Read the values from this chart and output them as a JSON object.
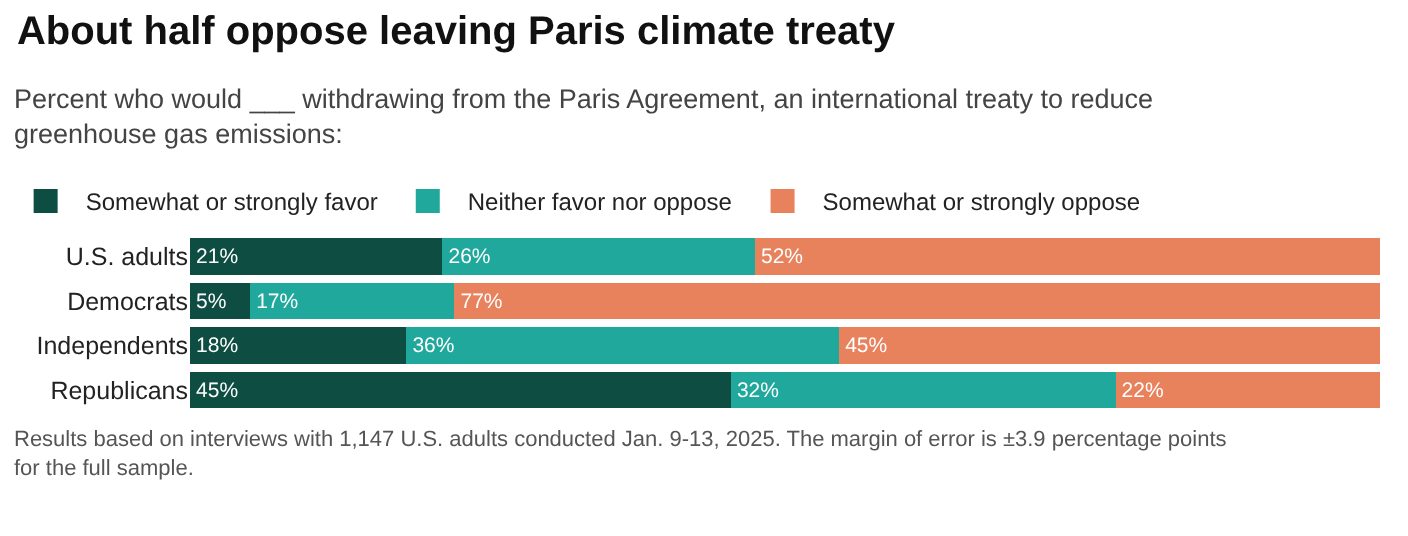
{
  "chart_data": {
    "type": "bar",
    "orientation": "horizontal",
    "stacked": true,
    "title": "About half oppose leaving Paris climate treaty",
    "subtitle": "Percent who would ___ withdrawing from the Paris Agreement, an international treaty to reduce greenhouse gas emissions:",
    "categories": [
      "U.S. adults",
      "Democrats",
      "Independents",
      "Republicans"
    ],
    "series": [
      {
        "name": "Somewhat or strongly favor",
        "color": "#0d4d42",
        "values": [
          21,
          5,
          18,
          45
        ],
        "value_labels": [
          "21%",
          "5%",
          "18%",
          "45%"
        ]
      },
      {
        "name": "Neither favor nor oppose",
        "color": "#1fa89b",
        "values": [
          26,
          17,
          36,
          32
        ],
        "value_labels": [
          "26%",
          "17%",
          "36%",
          "32%"
        ]
      },
      {
        "name": "Somewhat or strongly oppose",
        "color": "#e8825c",
        "values": [
          52,
          77,
          45,
          22
        ],
        "value_labels": [
          "52%",
          "77%",
          "45%",
          "22%"
        ]
      }
    ],
    "legend": "top left",
    "annotations": [
      "Results based on interviews with 1,147 U.S. adults conducted Jan. 9-13, 2025. The margin of error is ±3.9 percentage points for the full sample."
    ]
  }
}
